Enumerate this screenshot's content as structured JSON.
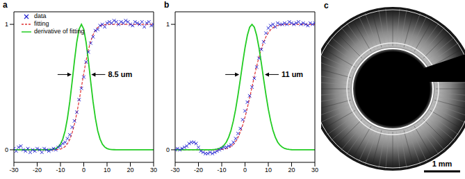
{
  "chart_data": [
    {
      "type": "line",
      "title": "a",
      "legend": "upper left",
      "xlim": [
        -30,
        30
      ],
      "xticks": [
        -30,
        -20,
        -10,
        0,
        10,
        20,
        30
      ],
      "ylim": [
        -0.1,
        1.1
      ],
      "yticks": [
        0,
        1
      ],
      "x": [
        -30,
        -29,
        -28,
        -27,
        -26,
        -25,
        -24,
        -23,
        -22,
        -21,
        -20,
        -19,
        -18,
        -17,
        -16,
        -15,
        -14,
        -13,
        -12,
        -11,
        -10,
        -9,
        -8,
        -7,
        -6,
        -5,
        -4,
        -3,
        -2,
        -1,
        0,
        1,
        2,
        3,
        4,
        5,
        6,
        7,
        8,
        9,
        10,
        11,
        12,
        13,
        14,
        15,
        16,
        17,
        18,
        19,
        20,
        21,
        22,
        23,
        24,
        25,
        26,
        27,
        28,
        29,
        30
      ],
      "series": [
        {
          "name": "data",
          "color": "#2020d0",
          "marker": "x",
          "line_style": "none",
          "values": [
            0.01,
            -0.01,
            0.02,
            0.03,
            0.0,
            -0.01,
            0.01,
            -0.02,
            0.0,
            -0.01,
            0.01,
            0.0,
            -0.02,
            0.01,
            0.0,
            -0.01,
            0.0,
            0.01,
            0.0,
            0.02,
            0.03,
            0.05,
            0.06,
            0.09,
            0.12,
            0.18,
            0.23,
            0.3,
            0.4,
            0.49,
            0.58,
            0.7,
            0.78,
            0.85,
            0.9,
            0.95,
            0.96,
            0.99,
            1.0,
            0.98,
            1.01,
            1.02,
            1.01,
            1.03,
            1.02,
            1.0,
            1.02,
            1.01,
            1.03,
            1.02,
            1.0,
            0.99,
            1.02,
            1.01,
            1.0,
            1.02,
            0.98,
            1.01,
            1.02,
            0.99,
            1.0
          ]
        },
        {
          "name": "fitting",
          "color": "#e03030",
          "line_style": "dashed",
          "values": [
            0,
            0,
            0,
            0,
            0,
            0,
            0,
            0,
            0,
            0,
            0,
            0,
            0,
            0,
            0,
            0,
            0,
            0,
            0.001,
            0.003,
            0.006,
            0.013,
            0.026,
            0.048,
            0.083,
            0.134,
            0.203,
            0.29,
            0.391,
            0.5,
            0.609,
            0.71,
            0.797,
            0.866,
            0.917,
            0.952,
            0.974,
            0.987,
            0.994,
            0.997,
            0.999,
            1,
            1,
            1,
            1,
            1,
            1,
            1,
            1,
            1,
            1,
            1,
            1,
            1,
            1,
            1,
            1,
            1,
            1,
            1,
            1
          ]
        },
        {
          "name": "derivative of fitting",
          "color": "#22cc22",
          "line_style": "solid",
          "values": [
            0,
            0,
            0,
            0,
            0,
            0,
            0,
            0,
            0,
            0,
            0,
            0,
            0,
            0,
            0,
            0.001,
            0.002,
            0.004,
            0.01,
            0.022,
            0.045,
            0.086,
            0.152,
            0.252,
            0.383,
            0.541,
            0.708,
            0.858,
            0.962,
            1,
            0.962,
            0.858,
            0.708,
            0.541,
            0.383,
            0.252,
            0.152,
            0.086,
            0.045,
            0.022,
            0.01,
            0.004,
            0.002,
            0.001,
            0,
            0,
            0,
            0,
            0,
            0,
            0,
            0,
            0,
            0,
            0,
            0,
            0,
            0,
            0,
            0,
            0
          ]
        }
      ],
      "annotation": {
        "text": "8.5 um",
        "x1": -5.25,
        "x2": 3.25,
        "y": 0.6
      }
    },
    {
      "type": "line",
      "title": "b",
      "xlim": [
        -30,
        30
      ],
      "xticks": [
        -30,
        -20,
        -10,
        0,
        10,
        20,
        30
      ],
      "ylim": [
        -0.1,
        1.1
      ],
      "yticks": [
        0,
        1
      ],
      "x": [
        -30,
        -29,
        -28,
        -27,
        -26,
        -25,
        -24,
        -23,
        -22,
        -21,
        -20,
        -19,
        -18,
        -17,
        -16,
        -15,
        -14,
        -13,
        -12,
        -11,
        -10,
        -9,
        -8,
        -7,
        -6,
        -5,
        -4,
        -3,
        -2,
        -1,
        0,
        1,
        2,
        3,
        4,
        5,
        6,
        7,
        8,
        9,
        10,
        11,
        12,
        13,
        14,
        15,
        16,
        17,
        18,
        19,
        20,
        21,
        22,
        23,
        24,
        25,
        26,
        27,
        28,
        29,
        30
      ],
      "series": [
        {
          "name": "data",
          "color": "#2020d0",
          "marker": "x",
          "line_style": "none",
          "values": [
            0.0,
            0.01,
            0.0,
            0.01,
            0.02,
            0.03,
            0.05,
            0.06,
            0.06,
            0.05,
            0.02,
            -0.01,
            -0.02,
            -0.03,
            -0.03,
            -0.02,
            -0.03,
            -0.02,
            -0.01,
            0.0,
            0.01,
            0.02,
            0.02,
            0.03,
            0.04,
            0.06,
            0.09,
            0.13,
            0.17,
            0.24,
            0.31,
            0.38,
            0.43,
            0.5,
            0.57,
            0.66,
            0.73,
            0.8,
            0.86,
            0.93,
            0.97,
            0.99,
            1.0,
            0.98,
            1.01,
            1.0,
            1.0,
            1.01,
            1.0,
            1.02,
            1.01,
            1.0,
            1.01,
            1.02,
            1.0,
            1.01,
            1.0,
            0.99,
            1.01,
            1.0,
            1.01
          ]
        },
        {
          "name": "fitting",
          "color": "#e03030",
          "line_style": "dashed",
          "values": [
            0,
            0,
            0,
            0,
            0,
            0,
            0,
            0,
            0,
            0,
            0,
            0,
            0,
            0,
            0,
            0,
            0,
            0,
            0,
            0.001,
            0.003,
            0.005,
            0.009,
            0.016,
            0.027,
            0.043,
            0.067,
            0.099,
            0.142,
            0.196,
            0.26,
            0.334,
            0.415,
            0.5,
            0.585,
            0.666,
            0.74,
            0.804,
            0.858,
            0.901,
            0.933,
            0.957,
            0.973,
            0.984,
            0.991,
            0.995,
            0.997,
            0.999,
            1,
            1,
            1,
            1,
            1,
            1,
            1,
            1,
            1,
            1,
            1,
            1,
            1
          ]
        },
        {
          "name": "derivative of fitting",
          "color": "#22cc22",
          "line_style": "solid",
          "values": [
            0,
            0,
            0,
            0,
            0,
            0,
            0,
            0,
            0,
            0,
            0,
            0,
            0,
            0,
            0,
            0,
            0.001,
            0.003,
            0.006,
            0.011,
            0.021,
            0.037,
            0.062,
            0.101,
            0.156,
            0.231,
            0.325,
            0.438,
            0.563,
            0.693,
            0.813,
            0.912,
            0.977,
            1,
            0.977,
            0.912,
            0.813,
            0.693,
            0.563,
            0.438,
            0.325,
            0.231,
            0.156,
            0.101,
            0.062,
            0.037,
            0.021,
            0.011,
            0.006,
            0.003,
            0.001,
            0,
            0,
            0,
            0,
            0,
            0,
            0,
            0,
            0,
            0
          ]
        }
      ],
      "annotation": {
        "text": "11 um",
        "x1": -2.5,
        "x2": 8.5,
        "y": 0.6
      }
    }
  ],
  "image": {
    "title": "c",
    "scale_bar": "1 mm"
  }
}
